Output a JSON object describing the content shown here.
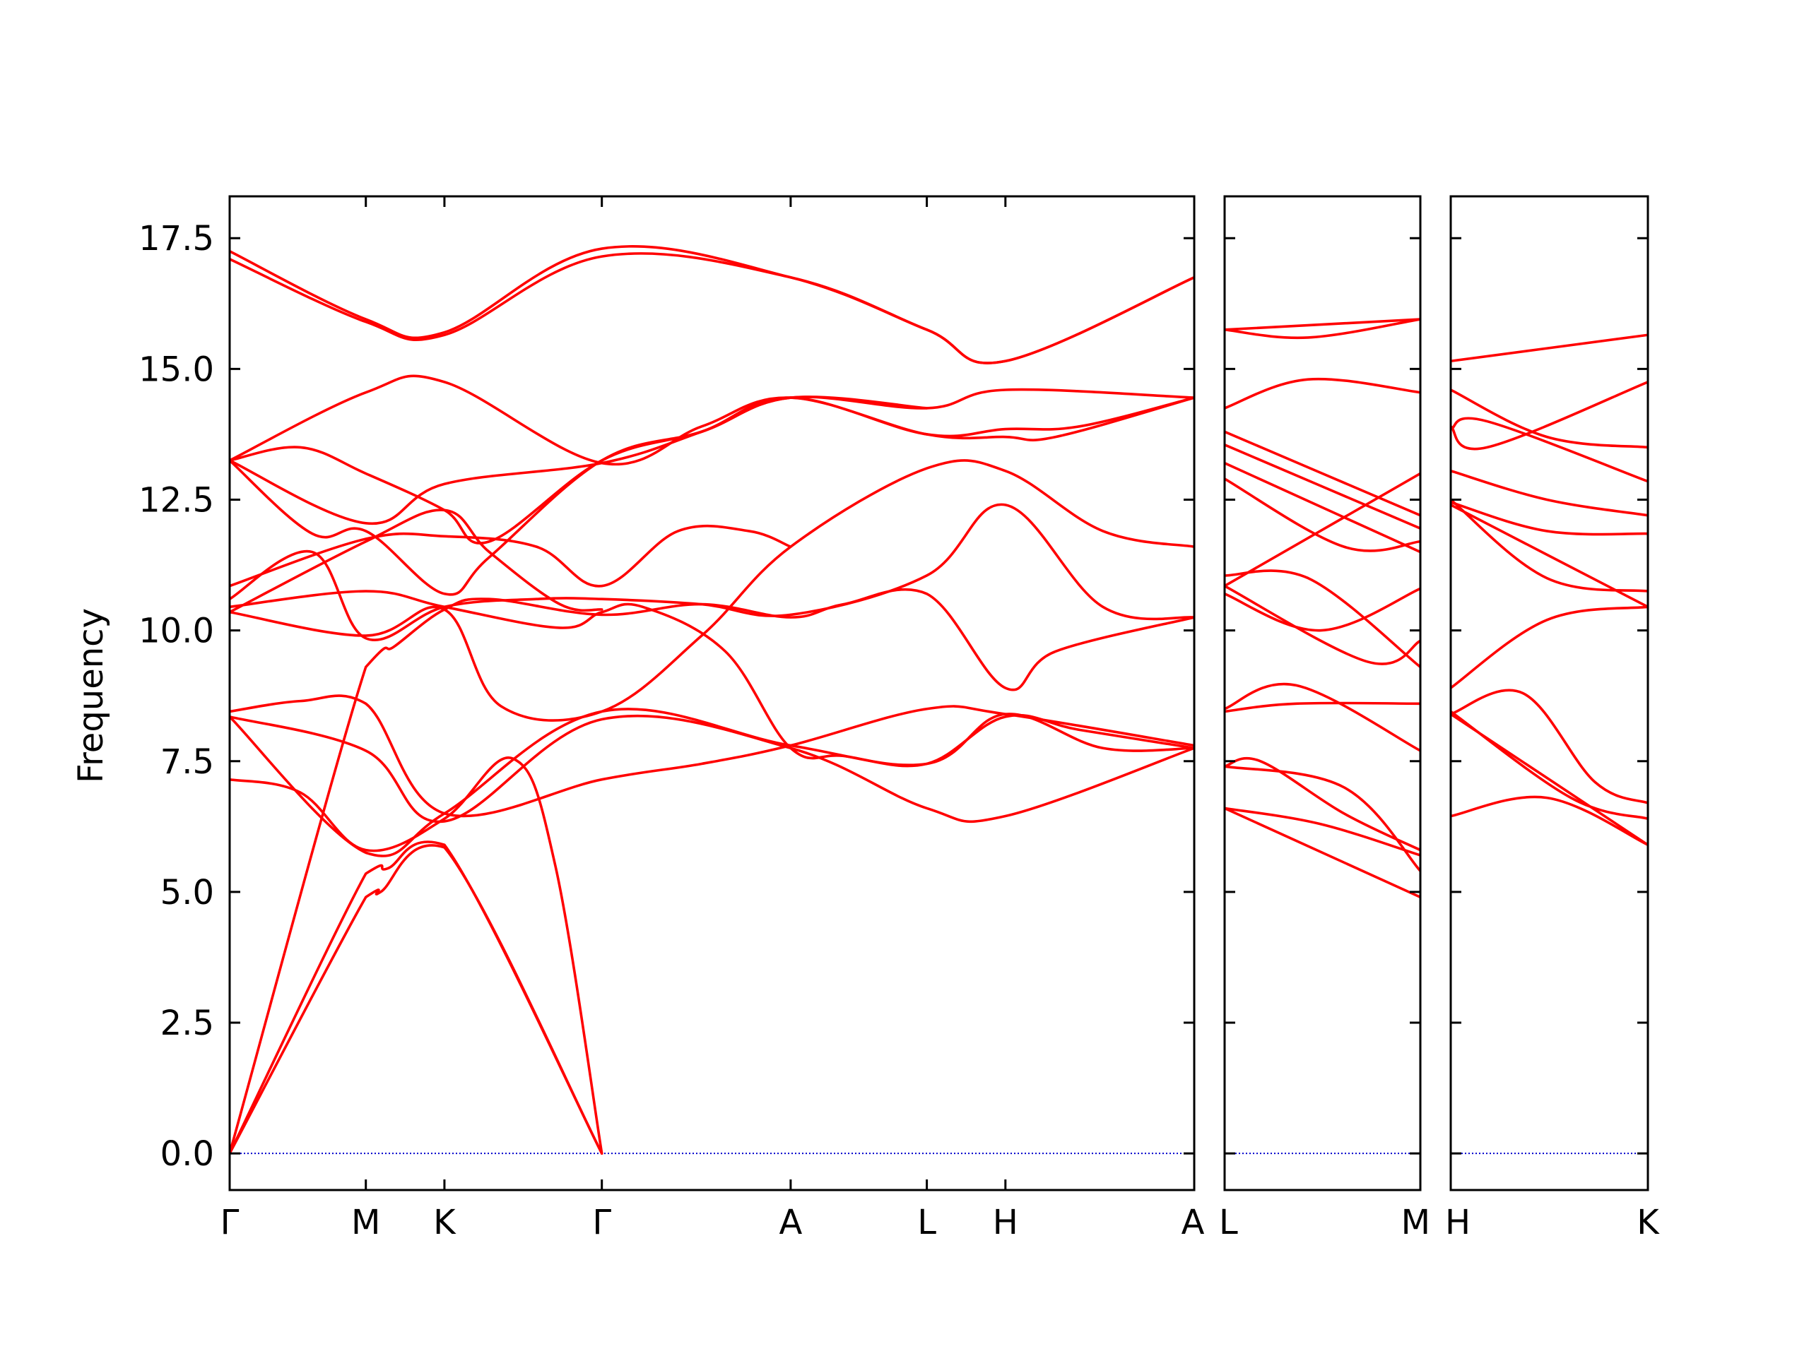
{
  "chart_data": {
    "type": "line",
    "title": "",
    "ylabel": "Frequency",
    "ylim": [
      -0.7,
      18.3
    ],
    "yticks": [
      "0.0",
      "2.5",
      "5.0",
      "7.5",
      "10.0",
      "12.5",
      "15.0",
      "17.5"
    ],
    "ytick_values": [
      0,
      2.5,
      5,
      7.5,
      10,
      12.5,
      15,
      17.5
    ],
    "band_color": "#ff0000",
    "zero_line_color": "#0000cc",
    "panels": [
      {
        "id": "panel-1",
        "labels": [
          "Γ",
          "M",
          "K",
          "Γ",
          "A",
          "L",
          "H",
          "A"
        ],
        "label_positions": [
          0,
          0.577,
          0.91,
          1.577,
          2.377,
          2.954,
          3.287,
          4.087
        ],
        "bands": [
          [
            [
              0,
              0
            ],
            [
              0.577,
              4.9
            ],
            [
              0.64,
              5.0
            ],
            [
              0.91,
              5.85
            ],
            [
              1.577,
              0
            ]
          ],
          [
            [
              0,
              0
            ],
            [
              0.577,
              5.35
            ],
            [
              0.67,
              5.45
            ],
            [
              0.91,
              5.9
            ],
            [
              1.577,
              0
            ]
          ],
          [
            [
              0,
              0
            ],
            [
              0.577,
              9.3
            ],
            [
              0.7,
              9.7
            ],
            [
              0.91,
              10.4
            ],
            [
              1.1,
              10.6
            ],
            [
              1.577,
              10.3
            ],
            [
              2.0,
              10.5
            ],
            [
              2.377,
              10.25
            ],
            [
              2.6,
              10.5
            ],
            [
              2.954,
              10.7
            ],
            [
              3.287,
              8.9
            ],
            [
              3.5,
              9.6
            ],
            [
              4.087,
              10.25
            ]
          ],
          [
            [
              0,
              7.15
            ],
            [
              0.3,
              6.9
            ],
            [
              0.577,
              5.8
            ],
            [
              0.91,
              6.4
            ],
            [
              1.2,
              7.55
            ],
            [
              1.38,
              5.5
            ],
            [
              1.577,
              0
            ]
          ],
          [
            [
              0,
              8.35
            ],
            [
              0.577,
              7.7
            ],
            [
              0.91,
              6.35
            ],
            [
              1.577,
              8.3
            ],
            [
              2.377,
              7.75
            ],
            [
              2.954,
              6.6
            ],
            [
              3.287,
              6.45
            ],
            [
              4.087,
              7.75
            ]
          ],
          [
            [
              0,
              8.35
            ],
            [
              0.577,
              5.75
            ],
            [
              0.91,
              6.5
            ],
            [
              1.577,
              8.45
            ],
            [
              2.377,
              7.8
            ],
            [
              2.954,
              7.45
            ],
            [
              3.287,
              8.4
            ],
            [
              3.7,
              7.75
            ],
            [
              4.087,
              7.75
            ]
          ],
          [
            [
              0,
              8.45
            ],
            [
              0.3,
              8.65
            ],
            [
              0.577,
              8.6
            ],
            [
              0.91,
              6.5
            ],
            [
              1.577,
              7.15
            ],
            [
              2.0,
              7.45
            ],
            [
              2.377,
              7.8
            ],
            [
              2.954,
              8.5
            ],
            [
              3.287,
              8.4
            ],
            [
              4.087,
              7.8
            ]
          ],
          [
            [
              0,
              10.35
            ],
            [
              0.577,
              9.9
            ],
            [
              0.91,
              10.4
            ],
            [
              1.15,
              8.55
            ],
            [
              1.577,
              8.45
            ],
            [
              2.0,
              9.9
            ],
            [
              2.377,
              11.6
            ],
            [
              2.954,
              13.1
            ],
            [
              3.287,
              13.05
            ],
            [
              3.7,
              11.9
            ],
            [
              4.087,
              11.6
            ]
          ],
          [
            [
              0,
              10.45
            ],
            [
              0.577,
              10.75
            ],
            [
              0.91,
              10.45
            ],
            [
              1.4,
              10.05
            ],
            [
              1.577,
              10.35
            ],
            [
              1.75,
              10.45
            ],
            [
              2.1,
              9.6
            ],
            [
              2.377,
              7.75
            ],
            [
              2.6,
              7.6
            ],
            [
              2.954,
              7.45
            ],
            [
              3.287,
              8.35
            ],
            [
              3.6,
              8.1
            ],
            [
              4.087,
              7.75
            ]
          ],
          [
            [
              0,
              10.6
            ],
            [
              0.35,
              11.5
            ],
            [
              0.577,
              9.85
            ],
            [
              0.91,
              10.45
            ],
            [
              1.3,
              10.6
            ],
            [
              1.577,
              10.6
            ],
            [
              2.0,
              10.5
            ],
            [
              2.377,
              10.3
            ],
            [
              2.954,
              11.05
            ],
            [
              3.287,
              12.4
            ],
            [
              3.7,
              10.45
            ],
            [
              4.087,
              10.25
            ]
          ],
          [
            [
              0,
              10.85
            ],
            [
              0.577,
              11.75
            ],
            [
              0.91,
              11.8
            ],
            [
              1.3,
              11.6
            ],
            [
              1.577,
              10.85
            ],
            [
              1.9,
              11.9
            ],
            [
              2.2,
              11.9
            ],
            [
              2.377,
              11.6
            ]
          ],
          [
            [
              0,
              10.35
            ],
            [
              0.577,
              11.7
            ],
            [
              0.91,
              12.3
            ],
            [
              1.1,
              11.5
            ],
            [
              1.4,
              10.5
            ],
            [
              1.577,
              10.4
            ]
          ],
          [
            [
              0,
              13.25
            ],
            [
              0.35,
              11.85
            ],
            [
              0.577,
              11.9
            ],
            [
              0.91,
              10.7
            ],
            [
              1.1,
              11.4
            ],
            [
              1.577,
              13.25
            ],
            [
              2.0,
              13.8
            ],
            [
              2.377,
              14.45
            ],
            [
              2.954,
              14.25
            ],
            [
              3.287,
              14.6
            ],
            [
              4.087,
              14.45
            ]
          ],
          [
            [
              0,
              13.25
            ],
            [
              0.577,
              12.05
            ],
            [
              0.91,
              12.8
            ],
            [
              1.577,
              13.2
            ],
            [
              2.0,
              13.8
            ],
            [
              2.377,
              14.45
            ],
            [
              2.954,
              13.75
            ],
            [
              3.287,
              13.85
            ],
            [
              3.6,
              13.9
            ],
            [
              4.087,
              14.45
            ]
          ],
          [
            [
              0,
              13.25
            ],
            [
              0.3,
              13.5
            ],
            [
              0.577,
              13.0
            ],
            [
              0.91,
              12.3
            ],
            [
              1.1,
              11.7
            ],
            [
              1.577,
              13.25
            ],
            [
              2.0,
              13.8
            ],
            [
              2.377,
              14.45
            ],
            [
              2.954,
              14.25
            ]
          ],
          [
            [
              0,
              13.25
            ],
            [
              0.577,
              14.55
            ],
            [
              0.91,
              14.75
            ],
            [
              1.577,
              13.2
            ],
            [
              2.0,
              13.9
            ],
            [
              2.377,
              14.45
            ],
            [
              2.954,
              13.75
            ],
            [
              3.287,
              13.7
            ],
            [
              3.5,
              13.7
            ],
            [
              4.087,
              14.45
            ]
          ],
          [
            [
              0,
              17.1
            ],
            [
              0.577,
              15.9
            ],
            [
              0.91,
              15.65
            ],
            [
              1.577,
              17.15
            ],
            [
              2.377,
              16.75
            ],
            [
              2.954,
              15.75
            ],
            [
              3.287,
              15.15
            ],
            [
              4.087,
              16.75
            ]
          ],
          [
            [
              0,
              17.25
            ],
            [
              0.577,
              15.95
            ],
            [
              0.91,
              15.7
            ],
            [
              1.577,
              17.3
            ],
            [
              2.377,
              16.75
            ],
            [
              2.954,
              15.75
            ],
            [
              3.287,
              15.15
            ],
            [
              4.087,
              16.75
            ]
          ]
        ]
      },
      {
        "id": "panel-2",
        "labels": [
          "L",
          "M"
        ],
        "label_positions": [
          0,
          0.82
        ],
        "bands": [
          [
            [
              0,
              6.6
            ],
            [
              0.82,
              4.9
            ]
          ],
          [
            [
              0,
              6.6
            ],
            [
              0.4,
              6.3
            ],
            [
              0.82,
              5.7
            ]
          ],
          [
            [
              0,
              7.4
            ],
            [
              0.15,
              7.5
            ],
            [
              0.5,
              6.5
            ],
            [
              0.82,
              5.8
            ]
          ],
          [
            [
              0,
              7.4
            ],
            [
              0.5,
              7.0
            ],
            [
              0.82,
              5.4
            ]
          ],
          [
            [
              0,
              8.5
            ],
            [
              0.3,
              8.95
            ],
            [
              0.82,
              7.7
            ]
          ],
          [
            [
              0,
              8.45
            ],
            [
              0.3,
              8.6
            ],
            [
              0.82,
              8.6
            ]
          ],
          [
            [
              0,
              10.7
            ],
            [
              0.4,
              10.0
            ],
            [
              0.82,
              10.8
            ]
          ],
          [
            [
              0,
              10.85
            ],
            [
              0.6,
              9.4
            ],
            [
              0.82,
              9.8
            ]
          ],
          [
            [
              0,
              11.05
            ],
            [
              0.35,
              11.0
            ],
            [
              0.82,
              9.3
            ]
          ],
          [
            [
              0,
              10.85
            ],
            [
              0.82,
              13.0
            ]
          ],
          [
            [
              0,
              12.9
            ],
            [
              0.5,
              11.6
            ],
            [
              0.82,
              11.7
            ]
          ],
          [
            [
              0,
              13.2
            ],
            [
              0.82,
              11.5
            ]
          ],
          [
            [
              0,
              13.55
            ],
            [
              0.82,
              11.95
            ]
          ],
          [
            [
              0,
              13.8
            ],
            [
              0.82,
              12.2
            ]
          ],
          [
            [
              0,
              14.25
            ],
            [
              0.35,
              14.8
            ],
            [
              0.82,
              14.55
            ]
          ],
          [
            [
              0,
              15.75
            ],
            [
              0.35,
              15.6
            ],
            [
              0.82,
              15.95
            ]
          ],
          [
            [
              0,
              15.75
            ],
            [
              0.82,
              15.95
            ]
          ]
        ]
      },
      {
        "id": "panel-3",
        "labels": [
          "H",
          "K"
        ],
        "label_positions": [
          0,
          0.82
        ],
        "bands": [
          [
            [
              0,
              6.45
            ],
            [
              0.4,
              6.8
            ],
            [
              0.82,
              5.9
            ]
          ],
          [
            [
              0,
              8.4
            ],
            [
              0.82,
              5.9
            ]
          ],
          [
            [
              0,
              8.45
            ],
            [
              0.5,
              6.8
            ],
            [
              0.82,
              6.4
            ]
          ],
          [
            [
              0,
              8.4
            ],
            [
              0.3,
              8.8
            ],
            [
              0.6,
              7.1
            ],
            [
              0.82,
              6.7
            ]
          ],
          [
            [
              0,
              8.9
            ],
            [
              0.4,
              10.2
            ],
            [
              0.82,
              10.45
            ]
          ],
          [
            [
              0,
              12.5
            ],
            [
              0.4,
              11.0
            ],
            [
              0.82,
              10.75
            ]
          ],
          [
            [
              0,
              12.4
            ],
            [
              0.82,
              10.45
            ]
          ],
          [
            [
              0,
              12.45
            ],
            [
              0.4,
              11.9
            ],
            [
              0.82,
              11.85
            ]
          ],
          [
            [
              0,
              13.05
            ],
            [
              0.4,
              12.5
            ],
            [
              0.82,
              12.2
            ]
          ],
          [
            [
              0,
              13.85
            ],
            [
              0.15,
              14.0
            ],
            [
              0.82,
              12.85
            ]
          ],
          [
            [
              0,
              14.6
            ],
            [
              0.4,
              13.7
            ],
            [
              0.82,
              13.5
            ]
          ],
          [
            [
              0,
              13.9
            ],
            [
              0.15,
              13.5
            ],
            [
              0.82,
              14.75
            ]
          ],
          [
            [
              0,
              15.15
            ],
            [
              0.82,
              15.65
            ]
          ]
        ]
      }
    ]
  }
}
